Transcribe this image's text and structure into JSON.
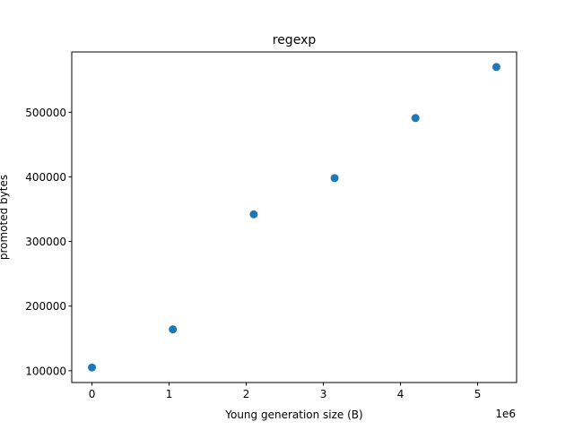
{
  "chart_data": {
    "type": "scatter",
    "title": "regexp",
    "xlabel": "Young generation size (B)",
    "ylabel": "promoted bytes",
    "x_offset_label": "1e6",
    "x": [
      0,
      1048576,
      2097152,
      3145728,
      4194304,
      5242880
    ],
    "y": [
      105000,
      164000,
      342000,
      398000,
      491000,
      570000
    ],
    "xlim": [
      -262144,
      5505024
    ],
    "ylim": [
      81750,
      593250
    ],
    "x_ticks": [
      {
        "value": 0,
        "label": "0"
      },
      {
        "value": 1000000,
        "label": "1"
      },
      {
        "value": 2000000,
        "label": "2"
      },
      {
        "value": 3000000,
        "label": "3"
      },
      {
        "value": 4000000,
        "label": "4"
      },
      {
        "value": 5000000,
        "label": "5"
      }
    ],
    "y_ticks": [
      {
        "value": 100000,
        "label": "100000"
      },
      {
        "value": 200000,
        "label": "200000"
      },
      {
        "value": 300000,
        "label": "300000"
      },
      {
        "value": 400000,
        "label": "400000"
      },
      {
        "value": 500000,
        "label": "500000"
      }
    ],
    "grid": false,
    "marker_color": "#1f77b4"
  }
}
